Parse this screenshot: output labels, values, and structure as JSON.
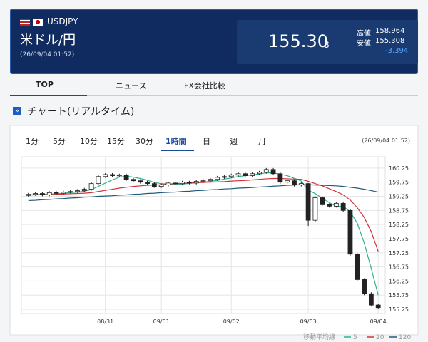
{
  "header": {
    "symbol": "USDJPY",
    "pair_name": "米ドル/円",
    "timestamp": "(26/09/04 01:52)",
    "price_main": "155.30",
    "price_sub": "8",
    "high_label": "高値",
    "high_value": "158.964",
    "low_label": "安値",
    "low_value": "155.308",
    "change": "-3.394"
  },
  "tabs": [
    {
      "label": "TOP",
      "active": true
    },
    {
      "label": "ニュース",
      "active": false
    },
    {
      "label": "FX会社比較",
      "active": false
    }
  ],
  "section_title": "チャート(リアルタイム)",
  "timeframes": [
    {
      "label": "1分",
      "active": false
    },
    {
      "label": "5分",
      "active": false
    },
    {
      "label": "10分",
      "active": false
    },
    {
      "label": "15分",
      "active": false
    },
    {
      "label": "30分",
      "active": false
    },
    {
      "label": "1時間",
      "active": true
    },
    {
      "label": "日",
      "active": false
    },
    {
      "label": "週",
      "active": false
    },
    {
      "label": "月",
      "active": false
    }
  ],
  "chart_timestamp": "(26/09/04 01:52)",
  "chart_data": {
    "type": "candlestick",
    "x": [
      0,
      1,
      2,
      3,
      4,
      5,
      6,
      7,
      8,
      9,
      10,
      11,
      12,
      13,
      14,
      15,
      16,
      17,
      18,
      19,
      20,
      21,
      22,
      23,
      24,
      25,
      26,
      27,
      28,
      29,
      30,
      31,
      32,
      33,
      34,
      35,
      36,
      37,
      38,
      39,
      40,
      41,
      42,
      43,
      44,
      45,
      46,
      47,
      48,
      49,
      50
    ],
    "open": [
      159.28,
      159.32,
      159.35,
      159.3,
      159.38,
      159.36,
      159.4,
      159.42,
      159.45,
      159.5,
      159.7,
      159.95,
      160.02,
      159.98,
      160.0,
      159.85,
      159.8,
      159.75,
      159.7,
      159.6,
      159.65,
      159.72,
      159.7,
      159.75,
      159.72,
      159.78,
      159.8,
      159.85,
      159.92,
      159.95,
      160.0,
      160.05,
      159.98,
      160.05,
      160.1,
      160.2,
      160.05,
      159.75,
      159.8,
      159.65,
      159.7,
      158.4,
      159.2,
      158.95,
      158.9,
      159.0,
      158.75,
      157.2,
      156.3,
      155.8,
      155.4
    ],
    "high": [
      159.37,
      159.4,
      159.4,
      159.43,
      159.43,
      159.45,
      159.47,
      159.5,
      159.55,
      159.75,
      160.0,
      160.07,
      160.07,
      160.05,
      160.05,
      159.9,
      159.85,
      159.8,
      159.75,
      159.7,
      159.77,
      159.77,
      159.8,
      159.8,
      159.83,
      159.85,
      159.9,
      159.97,
      160.0,
      160.05,
      160.1,
      160.1,
      160.1,
      160.15,
      160.25,
      160.25,
      160.1,
      159.85,
      159.85,
      159.75,
      159.72,
      159.25,
      159.25,
      159.0,
      159.05,
      159.05,
      158.8,
      157.25,
      156.35,
      155.85,
      155.45
    ],
    "low": [
      159.23,
      159.27,
      159.25,
      159.25,
      159.31,
      159.31,
      159.35,
      159.37,
      159.4,
      159.45,
      159.65,
      159.9,
      159.93,
      159.93,
      159.8,
      159.75,
      159.7,
      159.65,
      159.55,
      159.55,
      159.6,
      159.65,
      159.65,
      159.67,
      159.67,
      159.73,
      159.75,
      159.8,
      159.87,
      159.9,
      159.95,
      159.93,
      159.93,
      160.0,
      160.05,
      160.0,
      159.7,
      159.7,
      159.6,
      159.6,
      158.2,
      158.35,
      158.9,
      158.85,
      158.85,
      158.7,
      157.15,
      156.25,
      155.75,
      155.35,
      155.25
    ],
    "close": [
      159.32,
      159.35,
      159.3,
      159.38,
      159.36,
      159.4,
      159.42,
      159.45,
      159.5,
      159.7,
      159.95,
      160.02,
      159.98,
      160.0,
      159.85,
      159.8,
      159.75,
      159.7,
      159.6,
      159.65,
      159.72,
      159.7,
      159.75,
      159.72,
      159.78,
      159.8,
      159.85,
      159.92,
      159.95,
      160.0,
      160.05,
      159.98,
      160.05,
      160.1,
      160.2,
      160.05,
      159.75,
      159.8,
      159.65,
      159.7,
      158.4,
      159.2,
      158.95,
      158.9,
      159.0,
      158.75,
      157.2,
      156.3,
      155.8,
      155.4,
      155.31
    ],
    "up_color": "#ffffff",
    "down_color": "#222222",
    "series": [
      {
        "name": "5",
        "color": "#2bb38a",
        "values": [
          159.3,
          159.31,
          159.32,
          159.33,
          159.34,
          159.36,
          159.38,
          159.4,
          159.43,
          159.49,
          159.6,
          159.72,
          159.83,
          159.93,
          159.96,
          159.93,
          159.88,
          159.82,
          159.74,
          159.7,
          159.68,
          159.67,
          159.68,
          159.71,
          159.73,
          159.75,
          159.78,
          159.81,
          159.86,
          159.9,
          159.95,
          159.98,
          160.01,
          160.04,
          160.08,
          160.08,
          160.03,
          159.98,
          159.89,
          159.79,
          159.46,
          159.35,
          159.18,
          159.03,
          158.89,
          158.9,
          158.7,
          158.3,
          157.6,
          156.7,
          155.75
        ]
      },
      {
        "name": "20",
        "color": "#d0333a",
        "values": [
          159.3,
          159.3,
          159.31,
          159.31,
          159.32,
          159.33,
          159.34,
          159.35,
          159.36,
          159.38,
          159.42,
          159.46,
          159.5,
          159.54,
          159.57,
          159.6,
          159.62,
          159.64,
          159.65,
          159.66,
          159.68,
          159.7,
          159.71,
          159.72,
          159.73,
          159.74,
          159.75,
          159.76,
          159.77,
          159.79,
          159.8,
          159.81,
          159.83,
          159.85,
          159.87,
          159.88,
          159.88,
          159.87,
          159.86,
          159.85,
          159.78,
          159.7,
          159.62,
          159.52,
          159.42,
          159.3,
          159.12,
          158.85,
          158.5,
          158.0,
          157.3
        ]
      },
      {
        "name": "120",
        "color": "#1f5a7a",
        "values": [
          159.1,
          159.11,
          159.13,
          159.14,
          159.16,
          159.17,
          159.19,
          159.2,
          159.22,
          159.23,
          159.25,
          159.26,
          159.27,
          159.29,
          159.3,
          159.32,
          159.33,
          159.35,
          159.36,
          159.38,
          159.39,
          159.4,
          159.42,
          159.43,
          159.45,
          159.46,
          159.48,
          159.49,
          159.51,
          159.52,
          159.54,
          159.55,
          159.56,
          159.58,
          159.59,
          159.61,
          159.62,
          159.64,
          159.65,
          159.66,
          159.66,
          159.65,
          159.64,
          159.63,
          159.62,
          159.6,
          159.57,
          159.54,
          159.5,
          159.45,
          159.4
        ]
      }
    ],
    "legend_title": "移動平均線",
    "xlim": [
      -1,
      51
    ],
    "xticks": [
      {
        "value": 11,
        "label": "08/31"
      },
      {
        "value": 19,
        "label": "09/01"
      },
      {
        "value": 29,
        "label": "09/02"
      },
      {
        "value": 40,
        "label": "09/03"
      },
      {
        "value": 50,
        "label": "09/04"
      }
    ],
    "ylim": [
      155.1,
      160.65
    ],
    "yticks": [
      155.25,
      155.75,
      156.25,
      156.75,
      157.25,
      157.75,
      158.25,
      158.75,
      159.25,
      159.75,
      160.25
    ],
    "grid": true
  }
}
